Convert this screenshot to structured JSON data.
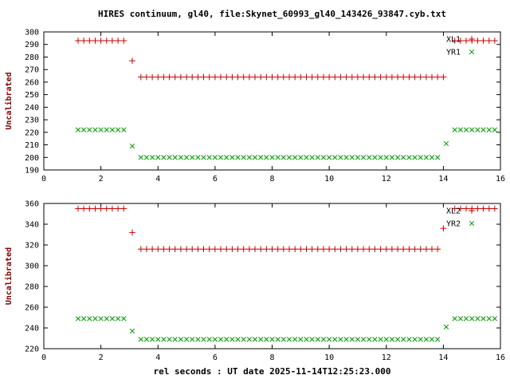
{
  "title": "HIRES continuum, gl40, file:Skynet_60993_gl40_143426_93847.cyb.txt",
  "xlabel": "rel seconds : UT date 2025-11-14T12:25:23.000",
  "styles": {
    "background": "#ffffff",
    "border_color": "#000000",
    "text_color": "#000000",
    "ylabel_color": "#800000",
    "red": "#cc0000",
    "green": "#009900"
  },
  "chart_data": [
    {
      "type": "scatter",
      "panel": "top",
      "ylabel": "Uncalibrated",
      "xlim": [
        0,
        16
      ],
      "xtick_step": 2,
      "ylim": [
        190,
        300
      ],
      "ytick_step": 10,
      "grid": false,
      "legend_position": "top-right",
      "series": [
        {
          "name": "XL1",
          "marker": "plus",
          "color": "#cc0000",
          "runs": [
            {
              "x0": 1.2,
              "x1": 2.8,
              "dx": 0.2,
              "y": 293
            },
            {
              "x": 3.1,
              "y": 277
            },
            {
              "x0": 3.4,
              "x1": 14.0,
              "dx": 0.2,
              "y": 264
            },
            {
              "x0": 14.4,
              "x1": 15.8,
              "dx": 0.2,
              "y": 293
            }
          ]
        },
        {
          "name": "YR1",
          "marker": "cross",
          "color": "#009900",
          "runs": [
            {
              "x0": 1.2,
              "x1": 2.8,
              "dx": 0.2,
              "y": 222
            },
            {
              "x": 3.1,
              "y": 209
            },
            {
              "x0": 3.4,
              "x1": 13.8,
              "dx": 0.2,
              "y": 200
            },
            {
              "x": 14.1,
              "y": 211
            },
            {
              "x0": 14.4,
              "x1": 15.8,
              "dx": 0.2,
              "y": 222
            }
          ]
        }
      ]
    },
    {
      "type": "scatter",
      "panel": "bottom",
      "ylabel": "Uncalibrated",
      "xlim": [
        0,
        16
      ],
      "xtick_step": 2,
      "ylim": [
        220,
        360
      ],
      "ytick_step": 20,
      "grid": false,
      "legend_position": "top-right",
      "series": [
        {
          "name": "XL2",
          "marker": "plus",
          "color": "#cc0000",
          "runs": [
            {
              "x0": 1.2,
              "x1": 2.8,
              "dx": 0.2,
              "y": 355
            },
            {
              "x": 3.1,
              "y": 332
            },
            {
              "x0": 3.4,
              "x1": 13.8,
              "dx": 0.2,
              "y": 316
            },
            {
              "x": 14.0,
              "y": 336
            },
            {
              "x0": 14.4,
              "x1": 15.8,
              "dx": 0.2,
              "y": 355
            }
          ]
        },
        {
          "name": "YR2",
          "marker": "cross",
          "color": "#009900",
          "runs": [
            {
              "x0": 1.2,
              "x1": 2.8,
              "dx": 0.2,
              "y": 249
            },
            {
              "x": 3.1,
              "y": 237
            },
            {
              "x0": 3.4,
              "x1": 13.8,
              "dx": 0.2,
              "y": 229
            },
            {
              "x": 14.1,
              "y": 241
            },
            {
              "x0": 14.4,
              "x1": 15.8,
              "dx": 0.2,
              "y": 249
            }
          ]
        }
      ]
    }
  ]
}
